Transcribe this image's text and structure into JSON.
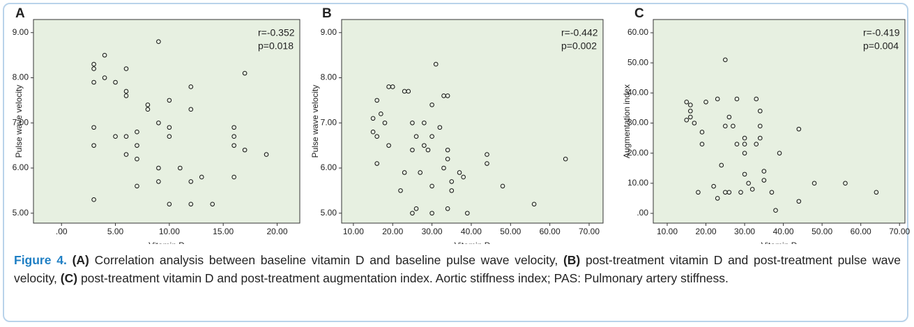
{
  "chart_data": [
    {
      "type": "scatter",
      "label": "A",
      "xlabel": "Vitamin D",
      "ylabel": "Pulse wave velocity",
      "annotations": [
        "r=-0.352",
        "p=0.018"
      ],
      "xlim": [
        -2.6,
        22.1
      ],
      "ylim": [
        4.78,
        9.29
      ],
      "xticks": [
        {
          "value": 0,
          "label": ".00"
        },
        {
          "value": 5,
          "label": "5.00"
        },
        {
          "value": 10,
          "label": "10.00"
        },
        {
          "value": 15,
          "label": "15.00"
        },
        {
          "value": 20,
          "label": "20.00"
        }
      ],
      "yticks": [
        {
          "value": 5,
          "label": "5.00"
        },
        {
          "value": 6,
          "label": "6.00"
        },
        {
          "value": 7,
          "label": "7.00"
        },
        {
          "value": 8,
          "label": "8.00"
        },
        {
          "value": 9,
          "label": "9.00"
        }
      ],
      "x": [
        3,
        3,
        3,
        4,
        4,
        5,
        6,
        6,
        6,
        8,
        8,
        9,
        10,
        12,
        12,
        17,
        3,
        3,
        5,
        6,
        6,
        7,
        7,
        7,
        9,
        10,
        10,
        16,
        16,
        16,
        17,
        19,
        7,
        9,
        9,
        11,
        12,
        13,
        16,
        3,
        10,
        12,
        14
      ],
      "values": [
        8.3,
        8.2,
        7.9,
        8.5,
        8.0,
        7.9,
        8.2,
        7.7,
        7.6,
        7.4,
        7.3,
        8.8,
        7.5,
        7.8,
        7.3,
        8.1,
        6.9,
        6.5,
        6.7,
        6.7,
        6.3,
        6.8,
        6.5,
        6.2,
        7.0,
        6.9,
        6.7,
        6.9,
        6.7,
        6.5,
        6.4,
        6.3,
        5.6,
        6.0,
        5.7,
        6.0,
        5.7,
        5.8,
        5.8,
        5.3,
        5.2,
        5.2,
        5.2
      ]
    },
    {
      "type": "scatter",
      "label": "B",
      "xlabel": "Vitamin D",
      "ylabel": "Pulse wave velocity",
      "annotations": [
        "r=-0.442",
        "p=0.002"
      ],
      "xlim": [
        7.0,
        73.55
      ],
      "ylim": [
        4.78,
        9.29
      ],
      "xticks": [
        {
          "value": 10,
          "label": "10.00"
        },
        {
          "value": 20,
          "label": "20.00"
        },
        {
          "value": 30,
          "label": "30.00"
        },
        {
          "value": 40,
          "label": "40.00"
        },
        {
          "value": 50,
          "label": "50.00"
        },
        {
          "value": 60,
          "label": "60.00"
        },
        {
          "value": 70,
          "label": "70.00"
        }
      ],
      "yticks": [
        {
          "value": 5,
          "label": "5.00"
        },
        {
          "value": 6,
          "label": "6.00"
        },
        {
          "value": 7,
          "label": "7.00"
        },
        {
          "value": 8,
          "label": "8.00"
        },
        {
          "value": 9,
          "label": "9.00"
        }
      ],
      "x": [
        31,
        19,
        20,
        23,
        24,
        33,
        34,
        16,
        30,
        17,
        15,
        18,
        25,
        28,
        15,
        32,
        16,
        26,
        30,
        19,
        28,
        29,
        25,
        34,
        44,
        34,
        64,
        16,
        44,
        33,
        23,
        27,
        37,
        38,
        35,
        22,
        30,
        35,
        48,
        56,
        26,
        34,
        25,
        30,
        39
      ],
      "values": [
        8.3,
        7.8,
        7.8,
        7.7,
        7.7,
        7.6,
        7.6,
        7.5,
        7.4,
        7.2,
        7.1,
        7.0,
        7.0,
        7.0,
        6.8,
        6.9,
        6.7,
        6.7,
        6.7,
        6.5,
        6.5,
        6.4,
        6.4,
        6.4,
        6.3,
        6.2,
        6.2,
        6.1,
        6.1,
        6.0,
        5.9,
        5.9,
        5.9,
        5.8,
        5.7,
        5.5,
        5.6,
        5.5,
        5.6,
        5.2,
        5.1,
        5.1,
        5.0,
        5.0,
        5.0
      ]
    },
    {
      "type": "scatter",
      "label": "C",
      "xlabel": "Vitamin D",
      "ylabel": "Augmentation index",
      "annotations": [
        "r=-0.419",
        "p=0.004"
      ],
      "xlim": [
        6.4,
        71.4
      ],
      "ylim": [
        -3.24,
        64.4
      ],
      "xticks": [
        {
          "value": 10,
          "label": "10.00"
        },
        {
          "value": 20,
          "label": "20.00"
        },
        {
          "value": 30,
          "label": "30.00"
        },
        {
          "value": 40,
          "label": "40.00"
        },
        {
          "value": 50,
          "label": "50.00"
        },
        {
          "value": 60,
          "label": "60.00"
        },
        {
          "value": 70,
          "label": "70.00"
        }
      ],
      "yticks": [
        {
          "value": 0,
          "label": ".00"
        },
        {
          "value": 10,
          "label": "10.00"
        },
        {
          "value": 20,
          "label": "20.00"
        },
        {
          "value": 30,
          "label": "30.00"
        },
        {
          "value": 40,
          "label": "40.00"
        },
        {
          "value": 50,
          "label": "50.00"
        },
        {
          "value": 60,
          "label": "60.00"
        }
      ],
      "x": [
        25,
        15,
        16,
        20,
        23,
        28,
        33,
        16,
        34,
        16,
        26,
        15,
        17,
        25,
        27,
        34,
        19,
        30,
        34,
        19,
        28,
        30,
        33,
        30,
        39,
        44,
        35,
        24,
        30,
        35,
        22,
        31,
        48,
        56,
        18,
        25,
        26,
        29,
        32,
        37,
        64,
        23,
        44,
        38
      ],
      "values": [
        51,
        37,
        36,
        37,
        38,
        38,
        38,
        34,
        34,
        32,
        32,
        31,
        30,
        29,
        29,
        29,
        27,
        25,
        25,
        23,
        23,
        23,
        23,
        20,
        20,
        28,
        14,
        16,
        13,
        11,
        9,
        10,
        10,
        10,
        7,
        7,
        7,
        7,
        8,
        7,
        7,
        5,
        4,
        1
      ]
    }
  ],
  "caption": {
    "figure": "Figure 4.",
    "parts": [
      {
        "bold": "(A)",
        "text": " Correlation analysis between baseline vitamin D and baseline pulse wave velocity, "
      },
      {
        "bold": "(B)",
        "text": " post-treatment vitamin D and post-treatment pulse wave velocity, "
      },
      {
        "bold": "(C)",
        "text": " post-treatment vitamin D and post-treatment augmentation index. Aortic stiffness index; PAS: Pulmonary artery stiffness."
      }
    ]
  }
}
